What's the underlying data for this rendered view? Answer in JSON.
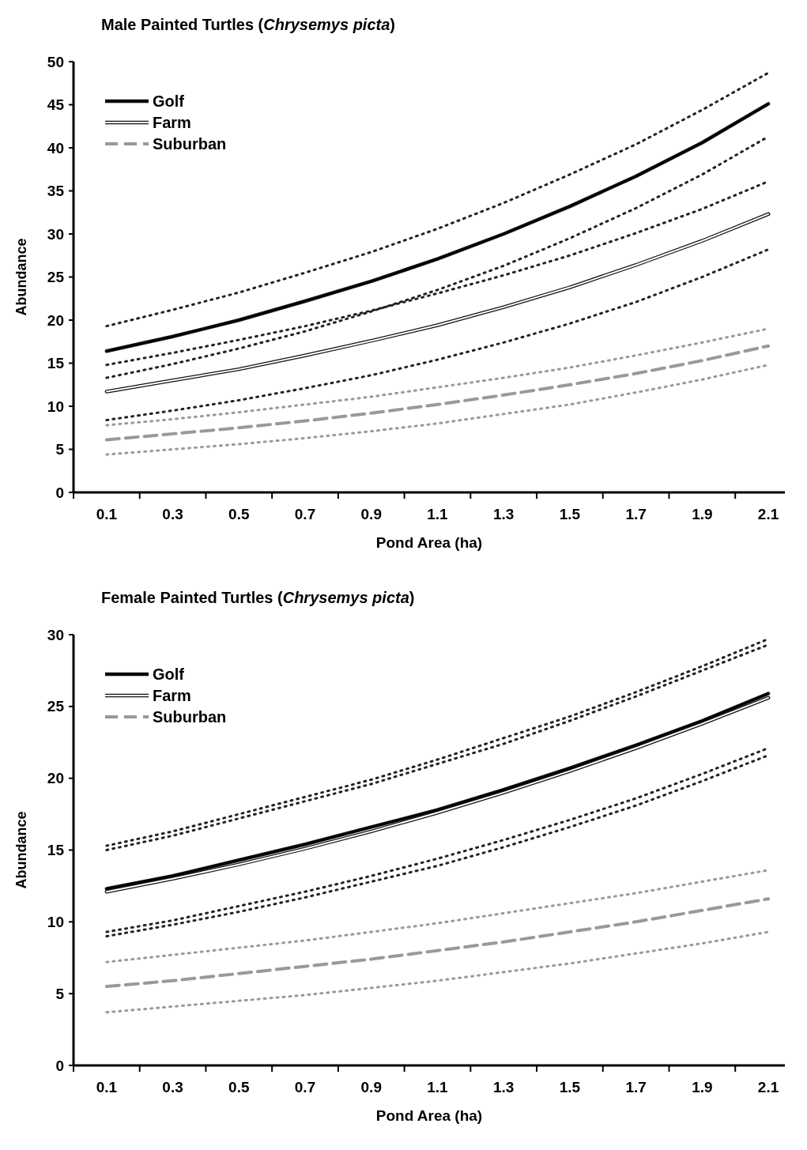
{
  "chart_data": [
    {
      "type": "line",
      "title": "Male Painted Turtles (Chrysemys picta)",
      "xlabel": "Pond Area (ha)",
      "ylabel": "Abundance",
      "x": [
        0.1,
        0.3,
        0.5,
        0.7,
        0.9,
        1.1,
        1.3,
        1.5,
        1.7,
        1.9,
        2.1
      ],
      "xlim": [
        0,
        2.15
      ],
      "xticks": [
        {
          "value": 0,
          "label": null
        },
        0.1,
        {
          "value": 0.2,
          "label": null
        },
        0.3,
        {
          "value": 0.4,
          "label": null
        },
        0.5,
        {
          "value": 0.6,
          "label": null
        },
        0.7,
        {
          "value": 0.8,
          "label": null
        },
        0.9,
        {
          "value": 1.0,
          "label": null
        },
        1.1,
        {
          "value": 1.2,
          "label": null
        },
        1.3,
        {
          "value": 1.4,
          "label": null
        },
        1.5,
        {
          "value": 1.6,
          "label": null
        },
        1.7,
        {
          "value": 1.8,
          "label": null
        },
        1.9,
        {
          "value": 2.0,
          "label": null
        },
        2.1
      ],
      "ylim": [
        0,
        50
      ],
      "yticks": [
        0,
        5,
        10,
        15,
        20,
        25,
        30,
        35,
        40,
        45,
        50
      ],
      "grid": false,
      "legend": "top left",
      "series": [
        {
          "name": "Golf",
          "color": "#000000",
          "line_style": "solid",
          "values": [
            16.4,
            18.1,
            20.0,
            22.2,
            24.5,
            27.1,
            30.0,
            33.2,
            36.7,
            40.6,
            45.1
          ]
        },
        {
          "name": "Farm",
          "color": "#ffffff",
          "line_style": "solid",
          "values": [
            11.7,
            13.0,
            14.3,
            15.9,
            17.6,
            19.4,
            21.5,
            23.8,
            26.4,
            29.2,
            32.3
          ]
        },
        {
          "name": "Suburban",
          "color": "#999999",
          "line_style": "dashed",
          "values": [
            6.1,
            6.8,
            7.5,
            8.3,
            9.2,
            10.2,
            11.3,
            12.5,
            13.8,
            15.3,
            17.0
          ]
        },
        {
          "color": "#222222",
          "line_style": "dotted",
          "values": [
            19.3,
            21.2,
            23.2,
            25.5,
            27.9,
            30.6,
            33.6,
            36.9,
            40.4,
            44.4,
            48.7
          ]
        },
        {
          "color": "#222222",
          "line_style": "dotted",
          "values": [
            13.3,
            14.9,
            16.7,
            18.7,
            21.0,
            23.5,
            26.3,
            29.5,
            33.0,
            36.9,
            41.3
          ]
        },
        {
          "color": "#222222",
          "line_style": "dotted",
          "values": [
            14.8,
            16.2,
            17.7,
            19.3,
            21.1,
            23.1,
            25.2,
            27.5,
            30.1,
            32.9,
            36.1
          ]
        },
        {
          "color": "#222222",
          "line_style": "dotted",
          "values": [
            8.4,
            9.5,
            10.7,
            12.1,
            13.6,
            15.4,
            17.4,
            19.6,
            22.1,
            25.0,
            28.2
          ]
        },
        {
          "color": "#999999",
          "line_style": "dotted",
          "values": [
            7.8,
            8.5,
            9.3,
            10.2,
            11.1,
            12.2,
            13.3,
            14.5,
            15.9,
            17.4,
            19.0
          ]
        },
        {
          "color": "#999999",
          "line_style": "dotted",
          "values": [
            4.4,
            5.0,
            5.6,
            6.3,
            7.1,
            8.0,
            9.1,
            10.2,
            11.6,
            13.1,
            14.8
          ]
        }
      ]
    },
    {
      "type": "line",
      "title": "Female Painted Turtles (Chrysemys picta)",
      "xlabel": "Pond Area (ha)",
      "ylabel": "Abundance",
      "x": [
        0.1,
        0.3,
        0.5,
        0.7,
        0.9,
        1.1,
        1.3,
        1.5,
        1.7,
        1.9,
        2.1
      ],
      "xlim": [
        0,
        2.15
      ],
      "xticks": [
        {
          "value": 0,
          "label": null
        },
        0.1,
        {
          "value": 0.2,
          "label": null
        },
        0.3,
        {
          "value": 0.4,
          "label": null
        },
        0.5,
        {
          "value": 0.6,
          "label": null
        },
        0.7,
        {
          "value": 0.8,
          "label": null
        },
        0.9,
        {
          "value": 1.0,
          "label": null
        },
        1.1,
        {
          "value": 1.2,
          "label": null
        },
        1.3,
        {
          "value": 1.4,
          "label": null
        },
        1.5,
        {
          "value": 1.6,
          "label": null
        },
        1.7,
        {
          "value": 1.8,
          "label": null
        },
        1.9,
        {
          "value": 2.0,
          "label": null
        },
        2.1
      ],
      "ylim": [
        0,
        30
      ],
      "yticks": [
        0,
        5,
        10,
        15,
        20,
        25,
        30
      ],
      "grid": false,
      "legend": "top left",
      "series": [
        {
          "name": "Golf",
          "color": "#000000",
          "line_style": "solid",
          "values": [
            12.3,
            13.2,
            14.3,
            15.4,
            16.6,
            17.8,
            19.2,
            20.7,
            22.3,
            24.0,
            25.9
          ]
        },
        {
          "name": "Farm",
          "color": "#ffffff",
          "line_style": "solid",
          "values": [
            12.1,
            13.0,
            14.0,
            15.1,
            16.3,
            17.6,
            19.0,
            20.5,
            22.1,
            23.8,
            25.6
          ]
        },
        {
          "name": "Suburban",
          "color": "#999999",
          "line_style": "dashed",
          "values": [
            5.5,
            5.9,
            6.4,
            6.9,
            7.4,
            8.0,
            8.6,
            9.3,
            10.0,
            10.8,
            11.6
          ]
        },
        {
          "color": "#222222",
          "line_style": "dotted",
          "values": [
            15.3,
            16.3,
            17.5,
            18.7,
            19.9,
            21.3,
            22.8,
            24.3,
            26.0,
            27.8,
            29.7
          ]
        },
        {
          "color": "#222222",
          "line_style": "dotted",
          "values": [
            15.0,
            16.0,
            17.2,
            18.4,
            19.6,
            21.0,
            22.4,
            24.0,
            25.7,
            27.5,
            29.3
          ]
        },
        {
          "color": "#222222",
          "line_style": "dotted",
          "values": [
            9.3,
            10.1,
            11.1,
            12.1,
            13.2,
            14.4,
            15.7,
            17.1,
            18.6,
            20.3,
            22.1
          ]
        },
        {
          "color": "#222222",
          "line_style": "dotted",
          "values": [
            9.0,
            9.8,
            10.7,
            11.7,
            12.8,
            13.9,
            15.2,
            16.6,
            18.1,
            19.8,
            21.6
          ]
        },
        {
          "color": "#999999",
          "line_style": "dotted",
          "values": [
            7.2,
            7.7,
            8.2,
            8.7,
            9.3,
            9.9,
            10.6,
            11.3,
            12.0,
            12.8,
            13.6
          ]
        },
        {
          "color": "#999999",
          "line_style": "dotted",
          "values": [
            3.7,
            4.1,
            4.5,
            4.9,
            5.4,
            5.9,
            6.5,
            7.1,
            7.8,
            8.5,
            9.3
          ]
        }
      ]
    }
  ]
}
